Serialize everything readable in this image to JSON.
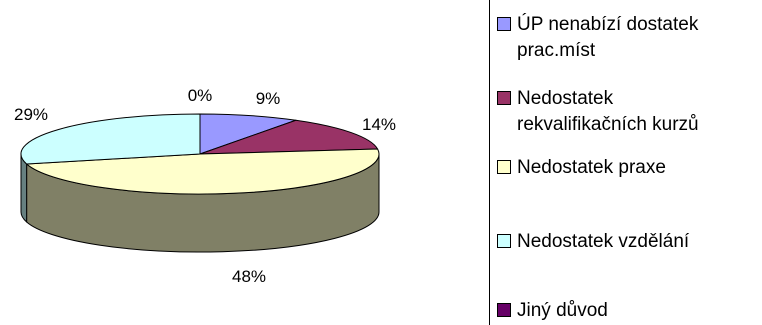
{
  "chart_data": {
    "type": "pie",
    "categories": [
      "ÚP nenabízí dostatek\nprac.míst",
      "Nedostatek\nrekvalifikačních kurzů",
      "Nedostatek praxe",
      "Nedostatek vzdělání",
      "Jiný důvod"
    ],
    "values": [
      9,
      14,
      48,
      29,
      0
    ],
    "data_labels": [
      "9%",
      "14%",
      "48%",
      "29%",
      "0%"
    ],
    "colors": [
      "#9999ff",
      "#993366",
      "#ffffcc",
      "#ccffff",
      "#660066"
    ],
    "side_colors": [
      "#4c4c80",
      "#4c1933",
      "#808066",
      "#668080",
      "#330033"
    ],
    "legend_position": "right",
    "is_3d": true
  }
}
